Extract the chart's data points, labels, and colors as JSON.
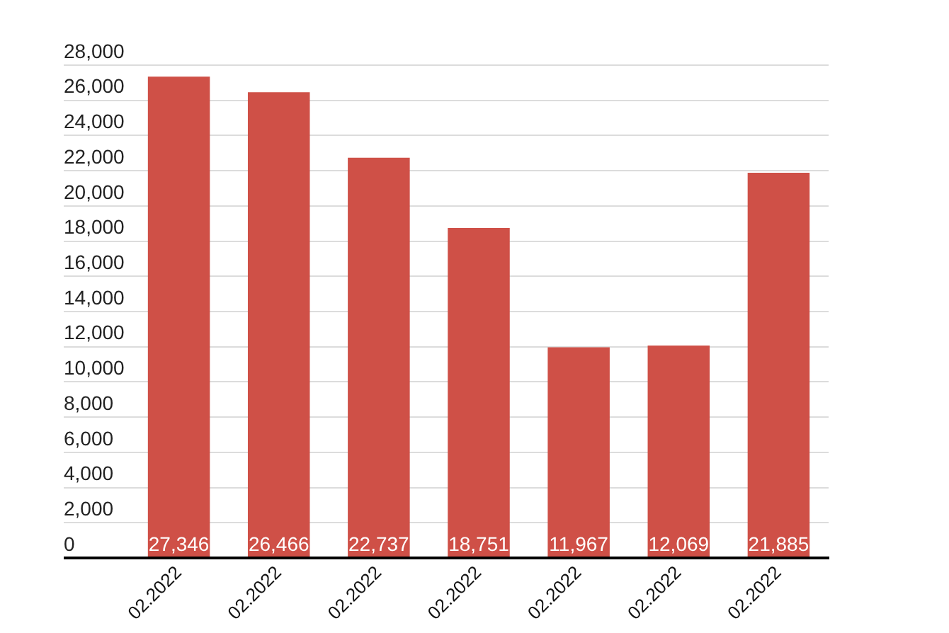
{
  "chart_data": {
    "type": "bar",
    "categories": [
      "02.2022",
      "02.2022",
      "02.2022",
      "02.2022",
      "02.2022",
      "02.2022",
      "02.2022"
    ],
    "values": [
      27346,
      26466,
      22737,
      18751,
      11967,
      12069,
      21885
    ],
    "value_labels": [
      "27,346",
      "26,466",
      "22,737",
      "18,751",
      "11,967",
      "12,069",
      "21,885"
    ],
    "color": "#cf5047",
    "ylim": [
      0,
      28000
    ],
    "yticks": [
      {
        "value": 0,
        "label": "0"
      },
      {
        "value": 2000,
        "label": "2,000"
      },
      {
        "value": 4000,
        "label": "4,000"
      },
      {
        "value": 6000,
        "label": "6,000"
      },
      {
        "value": 8000,
        "label": "8,000"
      },
      {
        "value": 10000,
        "label": "10,000"
      },
      {
        "value": 12000,
        "label": "12,000"
      },
      {
        "value": 14000,
        "label": "14,000"
      },
      {
        "value": 16000,
        "label": "16,000"
      },
      {
        "value": 18000,
        "label": "18,000"
      },
      {
        "value": 20000,
        "label": "20,000"
      },
      {
        "value": 22000,
        "label": "22,000"
      },
      {
        "value": 24000,
        "label": "24,000"
      },
      {
        "value": 26000,
        "label": "26,000"
      },
      {
        "value": 28000,
        "label": "28,000"
      }
    ],
    "grid": "y"
  }
}
